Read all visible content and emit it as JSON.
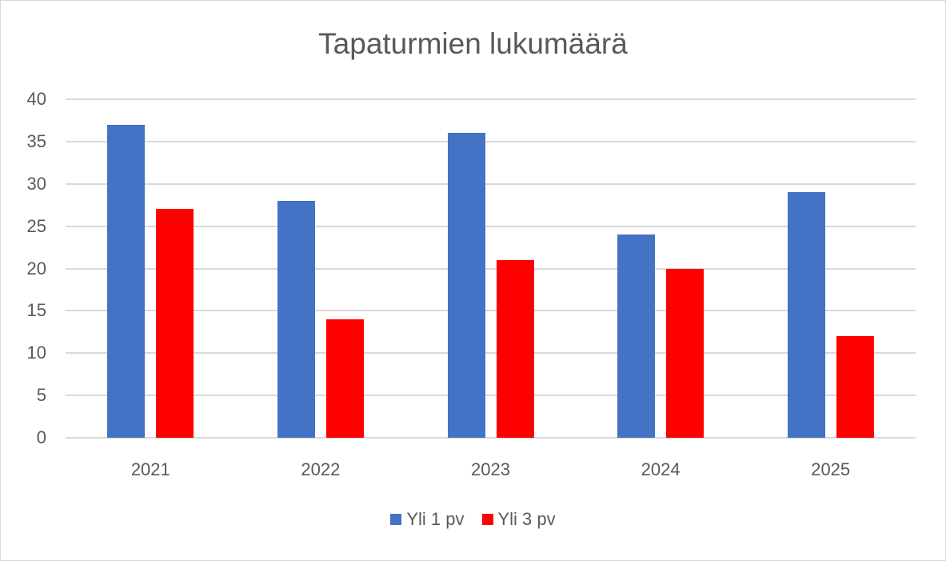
{
  "chart_data": {
    "type": "bar",
    "title": "Tapaturmien lukumäärä",
    "categories": [
      "2021",
      "2022",
      "2023",
      "2024",
      "2025"
    ],
    "series": [
      {
        "name": "Yli 1 pv",
        "color": "#4472C4",
        "values": [
          37,
          28,
          36,
          24,
          29
        ]
      },
      {
        "name": "Yli 3 pv",
        "color": "#FF0000",
        "values": [
          27,
          14,
          21,
          20,
          12
        ]
      }
    ],
    "xlabel": "",
    "ylabel": "",
    "ylim": [
      0,
      40
    ],
    "yticks": [
      0,
      5,
      10,
      15,
      20,
      25,
      30,
      35,
      40
    ],
    "grid": true,
    "legend_position": "bottom"
  }
}
